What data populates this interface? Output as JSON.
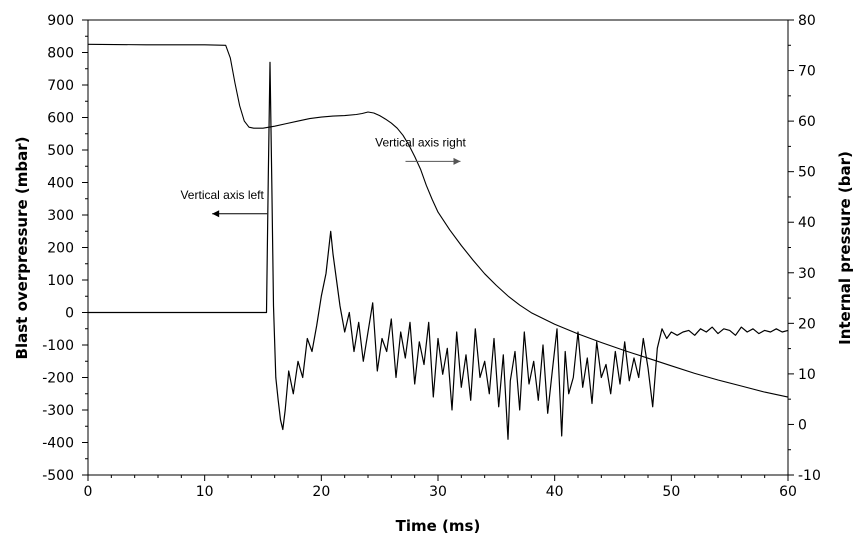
{
  "chart_data": {
    "type": "line",
    "title": "",
    "xlabel": "Time (ms)",
    "ylabel_left": "Blast overpressure  (mbar)",
    "ylabel_right": "Internal pressure  (bar)",
    "xlim": [
      0,
      60
    ],
    "ylim_left": [
      -500,
      900
    ],
    "ylim_right": [
      -10,
      80
    ],
    "x_ticks": [
      "0",
      "10",
      "20",
      "30",
      "40",
      "50",
      "60"
    ],
    "y_left_ticks": [
      "900",
      "800",
      "700",
      "600",
      "500",
      "400",
      "300",
      "200",
      "100",
      "0",
      "-100",
      "-200",
      "-300",
      "-400",
      "-500"
    ],
    "y_right_ticks": [
      "80",
      "70",
      "60",
      "50",
      "40",
      "30",
      "20",
      "10",
      "0",
      "-10"
    ],
    "grid": false,
    "line_color": "#000000",
    "series": [
      {
        "axis": "right",
        "x": [
          0,
          5,
          10,
          11.8,
          12.2,
          12.6,
          13,
          13.4,
          13.8,
          14.2,
          14.6,
          15,
          15.5,
          16,
          17,
          18,
          19,
          20,
          21,
          22,
          23,
          23.5,
          24,
          24.5,
          25,
          25.5,
          26,
          26.5,
          27,
          27.5,
          28,
          28.5,
          29,
          29.5,
          30,
          31,
          32,
          33,
          34,
          35,
          36,
          37,
          38,
          40,
          42,
          44,
          46,
          48,
          50,
          52,
          54,
          56,
          58,
          60
        ],
        "y": [
          75.2,
          75.1,
          75.1,
          75.0,
          72.5,
          67.5,
          63.0,
          60.0,
          58.8,
          58.6,
          58.6,
          58.6,
          58.8,
          59.0,
          59.5,
          60.0,
          60.5,
          60.8,
          61.0,
          61.1,
          61.3,
          61.5,
          61.8,
          61.6,
          61.1,
          60.4,
          59.6,
          58.6,
          57.2,
          55.3,
          53.0,
          50.5,
          47.3,
          44.5,
          42.0,
          38.5,
          35.4,
          32.5,
          29.8,
          27.5,
          25.4,
          23.6,
          22.1,
          19.8,
          17.9,
          16.2,
          14.6,
          13.1,
          11.6,
          10.1,
          8.8,
          7.6,
          6.4,
          5.4
        ]
      },
      {
        "axis": "left",
        "x": [
          0,
          5,
          10,
          15.3,
          15.45,
          15.6,
          15.75,
          15.9,
          16.1,
          16.3,
          16.5,
          16.7,
          16.9,
          17.2,
          17.6,
          18.0,
          18.4,
          18.8,
          19.2,
          19.6,
          20.0,
          20.4,
          20.8,
          21.0,
          21.3,
          21.6,
          22.0,
          22.4,
          22.8,
          23.2,
          23.6,
          24.0,
          24.4,
          24.8,
          25.2,
          25.6,
          26.0,
          26.4,
          26.8,
          27.2,
          27.6,
          28.0,
          28.4,
          28.8,
          29.2,
          29.6,
          30.0,
          30.4,
          30.8,
          31.2,
          31.6,
          32.0,
          32.4,
          32.8,
          33.2,
          33.6,
          34.0,
          34.4,
          34.8,
          35.2,
          35.6,
          36.0,
          36.2,
          36.6,
          37.0,
          37.4,
          37.8,
          38.2,
          38.6,
          39.0,
          39.4,
          39.8,
          40.2,
          40.6,
          40.9,
          41.2,
          41.6,
          42.0,
          42.4,
          42.8,
          43.2,
          43.6,
          44.0,
          44.4,
          44.8,
          45.2,
          45.6,
          46.0,
          46.4,
          46.8,
          47.2,
          47.6,
          48.0,
          48.4,
          48.8,
          49.2,
          49.6,
          50.0,
          50.5,
          51.0,
          51.5,
          52.0,
          52.5,
          53.0,
          53.5,
          54.0,
          54.5,
          55.0,
          55.5,
          56.0,
          56.5,
          57.0,
          57.5,
          58.0,
          58.5,
          59.0,
          59.5,
          60.0
        ],
        "y": [
          0,
          0,
          0,
          0,
          420,
          770,
          400,
          20,
          -200,
          -270,
          -330,
          -360,
          -300,
          -180,
          -250,
          -150,
          -200,
          -80,
          -120,
          -40,
          50,
          120,
          250,
          180,
          100,
          20,
          -60,
          0,
          -120,
          -30,
          -150,
          -60,
          30,
          -180,
          -80,
          -120,
          -20,
          -200,
          -60,
          -140,
          -30,
          -220,
          -90,
          -160,
          -30,
          -260,
          -80,
          -190,
          -110,
          -300,
          -60,
          -230,
          -130,
          -270,
          -50,
          -200,
          -150,
          -250,
          -80,
          -290,
          -130,
          -390,
          -210,
          -120,
          -300,
          -60,
          -220,
          -150,
          -270,
          -100,
          -310,
          -180,
          -50,
          -380,
          -120,
          -250,
          -200,
          -60,
          -230,
          -140,
          -280,
          -90,
          -200,
          -160,
          -250,
          -120,
          -220,
          -90,
          -210,
          -140,
          -200,
          -80,
          -170,
          -290,
          -110,
          -50,
          -80,
          -60,
          -70,
          -60,
          -55,
          -70,
          -50,
          -60,
          -45,
          -65,
          -50,
          -55,
          -70,
          -45,
          -60,
          -50,
          -65,
          -55,
          -60,
          -50,
          -60,
          -55
        ]
      }
    ],
    "annotations": [
      {
        "text": "Vertical axis left",
        "x": 11.5,
        "y": 350,
        "arrow": "left"
      },
      {
        "text": "Vertical axis right",
        "x": 28.5,
        "y": 55,
        "arrow": "right"
      }
    ]
  }
}
